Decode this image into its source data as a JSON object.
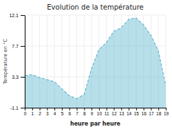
{
  "chart_data": {
    "type": "area",
    "title": "Evolution de la température",
    "xlabel": "heure par heure",
    "ylabel": "Température en °C",
    "x": [
      0,
      1,
      2,
      3,
      4,
      5,
      6,
      7,
      8,
      9,
      10,
      11,
      12,
      13,
      14,
      15,
      16,
      17,
      18,
      19
    ],
    "values": [
      3.5,
      3.6,
      3.2,
      2.9,
      2.6,
      1.6,
      0.6,
      0.2,
      0.8,
      4.5,
      7.2,
      8.2,
      9.8,
      10.3,
      11.5,
      11.7,
      10.7,
      9.2,
      7.0,
      2.0
    ],
    "color": "#60b8d0",
    "line_style": "dashed",
    "xlim": [
      0,
      19
    ],
    "xticks": [
      0,
      1,
      2,
      3,
      4,
      5,
      6,
      7,
      8,
      9,
      10,
      11,
      12,
      13,
      14,
      15,
      16,
      17,
      18,
      19
    ],
    "ylim": [
      -1.1,
      12.1
    ],
    "yticks": [
      -1.1,
      3.3,
      7.7,
      12.1
    ],
    "grid": true
  }
}
